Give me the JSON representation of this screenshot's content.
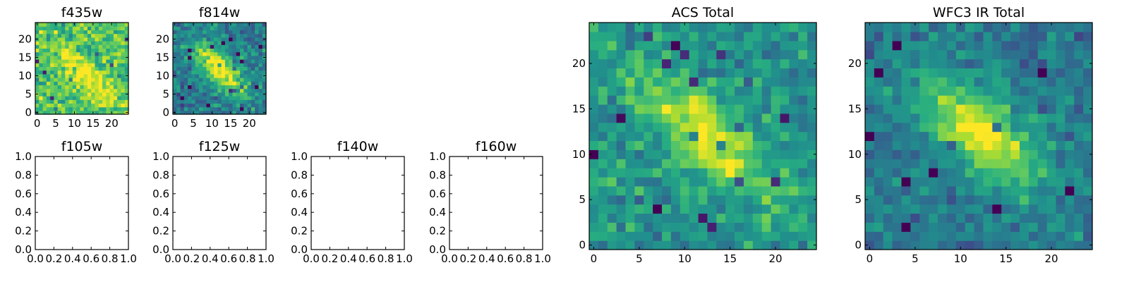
{
  "figure": {
    "colormap": "viridis",
    "colors": {
      "low": "#440154",
      "mid": "#21908d",
      "high": "#fde725",
      "frame": "#000000",
      "background": "#ffffff"
    }
  },
  "chart_data": [
    {
      "id": "f435w",
      "type": "heatmap",
      "title": "f435w",
      "shape": [
        25,
        25
      ],
      "xlim": [
        -0.5,
        24.5
      ],
      "ylim": [
        -0.5,
        24.5
      ],
      "xticks": [
        0,
        5,
        10,
        15,
        20
      ],
      "yticks": [
        0,
        5,
        10,
        15,
        20
      ],
      "xtick_labels": [
        "0",
        "5",
        "10",
        "15",
        "20"
      ],
      "ytick_labels": [
        "0",
        "5",
        "10",
        "15",
        "20"
      ],
      "origin": "lower",
      "source": {
        "cx": 13,
        "cy": 10,
        "angle_deg": -40,
        "sigma_major": 7,
        "sigma_minor": 2.2,
        "peak": 0.35,
        "background": 0.72,
        "noise": 0.16,
        "seed": 11
      }
    },
    {
      "id": "f814w",
      "type": "heatmap",
      "title": "f814w",
      "shape": [
        25,
        25
      ],
      "xlim": [
        -0.5,
        24.5
      ],
      "ylim": [
        -0.5,
        24.5
      ],
      "xticks": [
        0,
        5,
        10,
        15,
        20
      ],
      "yticks": [
        0,
        5,
        10,
        15,
        20
      ],
      "xtick_labels": [
        "0",
        "5",
        "10",
        "15",
        "20"
      ],
      "ytick_labels": [
        "0",
        "5",
        "10",
        "15",
        "20"
      ],
      "origin": "lower",
      "source": {
        "cx": 12,
        "cy": 12,
        "angle_deg": -45,
        "sigma_major": 6,
        "sigma_minor": 2.6,
        "peak": 0.65,
        "background": 0.42,
        "noise": 0.14,
        "seed": 23
      }
    },
    {
      "id": "f105w",
      "type": "empty",
      "title": "f105w",
      "xlim": [
        0,
        1
      ],
      "ylim": [
        0,
        1
      ],
      "xticks": [
        0,
        0.2,
        0.4,
        0.6,
        0.8,
        1.0
      ],
      "yticks": [
        0,
        0.2,
        0.4,
        0.6,
        0.8,
        1.0
      ],
      "xtick_labels": [
        "0.0",
        "0.2",
        "0.4",
        "0.6",
        "0.8",
        "1.0"
      ],
      "ytick_labels": [
        "0.0",
        "0.2",
        "0.4",
        "0.6",
        "0.8",
        "1.0"
      ]
    },
    {
      "id": "f125w",
      "type": "empty",
      "title": "f125w",
      "xlim": [
        0,
        1
      ],
      "ylim": [
        0,
        1
      ],
      "xticks": [
        0,
        0.2,
        0.4,
        0.6,
        0.8,
        1.0
      ],
      "yticks": [
        0,
        0.2,
        0.4,
        0.6,
        0.8,
        1.0
      ],
      "xtick_labels": [
        "0.0",
        "0.2",
        "0.4",
        "0.6",
        "0.8",
        "1.0"
      ],
      "ytick_labels": [
        "0.0",
        "0.2",
        "0.4",
        "0.6",
        "0.8",
        "1.0"
      ]
    },
    {
      "id": "f140w",
      "type": "empty",
      "title": "f140w",
      "xlim": [
        0,
        1
      ],
      "ylim": [
        0,
        1
      ],
      "xticks": [
        0,
        0.2,
        0.4,
        0.6,
        0.8,
        1.0
      ],
      "yticks": [
        0,
        0.2,
        0.4,
        0.6,
        0.8,
        1.0
      ],
      "xtick_labels": [
        "0.0",
        "0.2",
        "0.4",
        "0.6",
        "0.8",
        "1.0"
      ],
      "ytick_labels": [
        "0.0",
        "0.2",
        "0.4",
        "0.6",
        "0.8",
        "1.0"
      ]
    },
    {
      "id": "f160w",
      "type": "empty",
      "title": "f160w",
      "xlim": [
        0,
        1
      ],
      "ylim": [
        0,
        1
      ],
      "xticks": [
        0,
        0.2,
        0.4,
        0.6,
        0.8,
        1.0
      ],
      "yticks": [
        0,
        0.2,
        0.4,
        0.6,
        0.8,
        1.0
      ],
      "xtick_labels": [
        "0.0",
        "0.2",
        "0.4",
        "0.6",
        "0.8",
        "1.0"
      ],
      "ytick_labels": [
        "0.0",
        "0.2",
        "0.4",
        "0.6",
        "0.8",
        "1.0"
      ]
    },
    {
      "id": "acs-total",
      "type": "heatmap",
      "title": "ACS Total",
      "shape": [
        25,
        25
      ],
      "xlim": [
        -0.5,
        24.5
      ],
      "ylim": [
        -0.5,
        24.5
      ],
      "xticks": [
        0,
        5,
        10,
        15,
        20
      ],
      "yticks": [
        0,
        5,
        10,
        15,
        20
      ],
      "xtick_labels": [
        "0",
        "5",
        "10",
        "15",
        "20"
      ],
      "ytick_labels": [
        "0",
        "5",
        "10",
        "15",
        "20"
      ],
      "origin": "lower",
      "source": {
        "cx": 12.5,
        "cy": 12,
        "angle_deg": -42,
        "sigma_major": 6.5,
        "sigma_minor": 2.4,
        "peak": 0.45,
        "background": 0.52,
        "noise": 0.13,
        "seed": 37
      }
    },
    {
      "id": "wfc3-ir-total",
      "type": "heatmap",
      "title": "WFC3 IR Total",
      "shape": [
        25,
        25
      ],
      "xlim": [
        -0.5,
        24.5
      ],
      "ylim": [
        -0.5,
        24.5
      ],
      "xticks": [
        0,
        5,
        10,
        15,
        20
      ],
      "yticks": [
        0,
        5,
        10,
        15,
        20
      ],
      "xtick_labels": [
        "0",
        "5",
        "10",
        "15",
        "20"
      ],
      "ytick_labels": [
        "0",
        "5",
        "10",
        "15",
        "20"
      ],
      "origin": "lower",
      "source": {
        "cx": 12,
        "cy": 12.5,
        "angle_deg": -42,
        "sigma_major": 5.5,
        "sigma_minor": 2.6,
        "peak": 0.55,
        "background": 0.42,
        "noise": 0.11,
        "seed": 53
      }
    }
  ]
}
